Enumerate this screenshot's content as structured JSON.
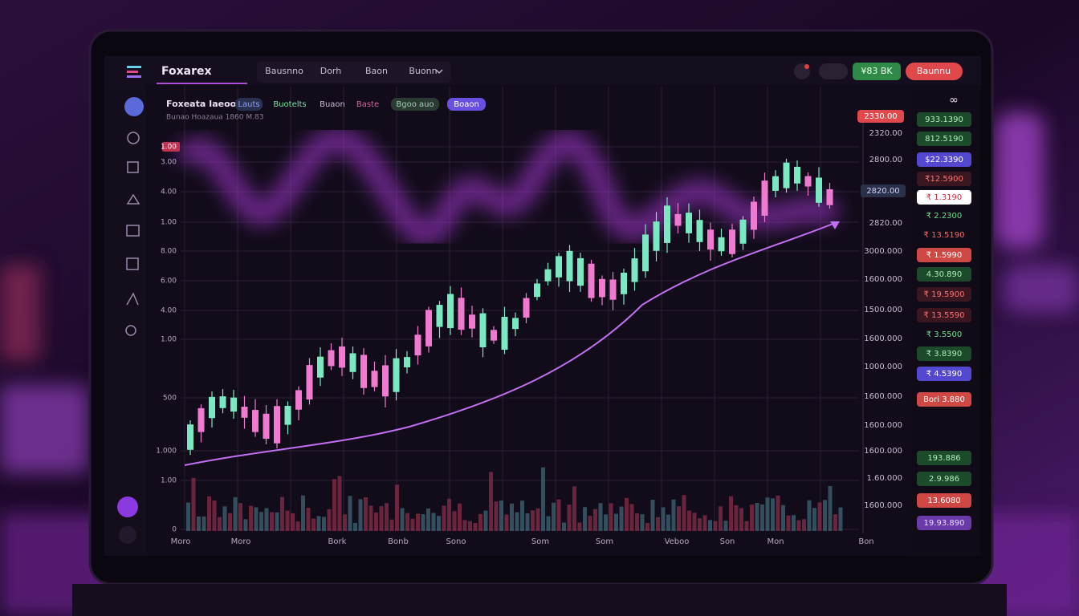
{
  "header": {
    "logo": "Foxarex",
    "nav": [
      "Bausnno",
      "Dorh",
      "Baon",
      "Buonn"
    ],
    "balance_button": "¥83 BK",
    "action_button": "Baunnu"
  },
  "chart_header": {
    "title": "Foxeata Iaeoo",
    "tags": [
      "Lauts",
      "Buotelts",
      "Buaon",
      "Baste",
      "Bgoo auo",
      "Boaon"
    ],
    "subtitle": "Bunao Hoazaua 1860 M.83"
  },
  "left_axis_labels": [
    "1.00",
    "3.00",
    "4.00",
    "1.00",
    "8.00",
    "6.00",
    "4.00",
    "1.00",
    "500",
    "1.000",
    "1.00",
    "0"
  ],
  "right_axis_labels": [
    "2320.00",
    "2800.00",
    "2820.00",
    "3000.000",
    "1600.000",
    "1500.000",
    "1600.000",
    "1000.000",
    "1600.000",
    "1600.000",
    "1600.000",
    "1.60.000",
    "1600.000"
  ],
  "price_badges": {
    "top": "2330.00",
    "current": "2820.00"
  },
  "x_axis_labels": [
    "Moro",
    "Moro",
    "Bork",
    "Bonb",
    "Sono",
    "Som",
    "Som",
    "Veboo",
    "Son",
    "Mon",
    "Bon"
  ],
  "watchlist": {
    "header": "∞",
    "items": [
      {
        "text": "933.1390",
        "style": "green"
      },
      {
        "text": "812.5190",
        "style": "green"
      },
      {
        "text": "$22.3390",
        "style": "blue"
      },
      {
        "text": "₹12.5900",
        "style": "darkred"
      },
      {
        "text": "₹ 1.3190",
        "style": "white"
      },
      {
        "text": "₹ 2.2300",
        "style": "plaingreen"
      },
      {
        "text": "₹ 13.5190",
        "style": "plainred"
      },
      {
        "text": "₹ 1.5990",
        "style": "red"
      },
      {
        "text": "4.30.890",
        "style": "green"
      },
      {
        "text": "₹ 19.5900",
        "style": "darkred"
      },
      {
        "text": "₹ 13.5590",
        "style": "darkred"
      },
      {
        "text": "₹ 3.5500",
        "style": "plaingreen"
      },
      {
        "text": "₹ 3.8390",
        "style": "green"
      },
      {
        "text": "₹ 4.5390",
        "style": "blue"
      },
      {
        "text": "Bori 3.880",
        "style": "red"
      },
      {
        "text": "193.886",
        "style": "green"
      },
      {
        "text": "2.9.986",
        "style": "green"
      },
      {
        "text": "13.6080",
        "style": "red"
      },
      {
        "text": "19.93.890",
        "style": "purple"
      }
    ]
  }
}
